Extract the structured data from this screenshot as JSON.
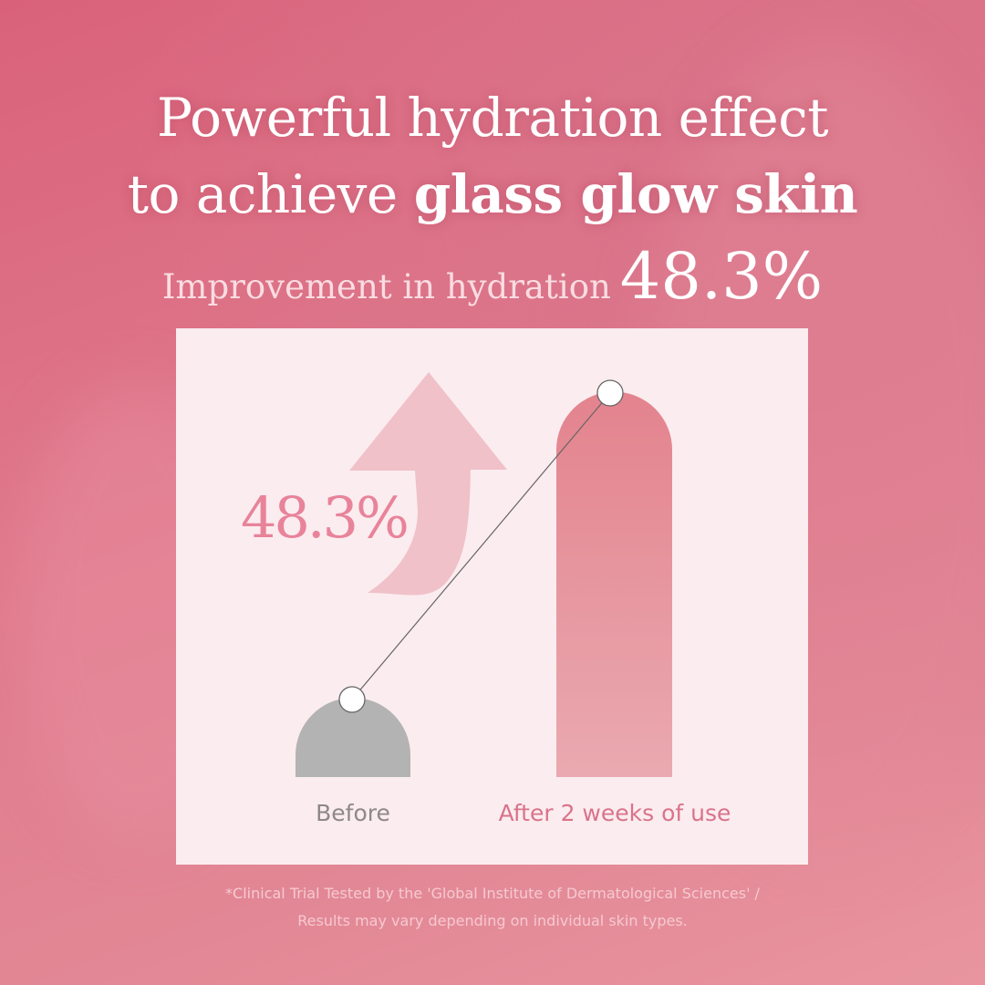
{
  "headline": {
    "line1": "Powerful hydration effect",
    "line2_prefix": "to achieve",
    "line2_bold": "glass glow skin"
  },
  "subheadline": {
    "label": "Improvement in hydration",
    "value": "48.3%"
  },
  "chart_data": {
    "type": "bar",
    "categories": [
      "Before",
      "After 2 weeks of use"
    ],
    "annotation": "48.3%",
    "colors": {
      "before": "#b3b3b3",
      "after": "#e3858f",
      "arrow": "#f0c1c9",
      "annotation": "#e8839a"
    }
  },
  "footnote": {
    "line1": "*Clinical Trial Tested by the 'Global Institute of Dermatological Sciences' /",
    "line2": "Results may vary depending on individual skin types."
  }
}
